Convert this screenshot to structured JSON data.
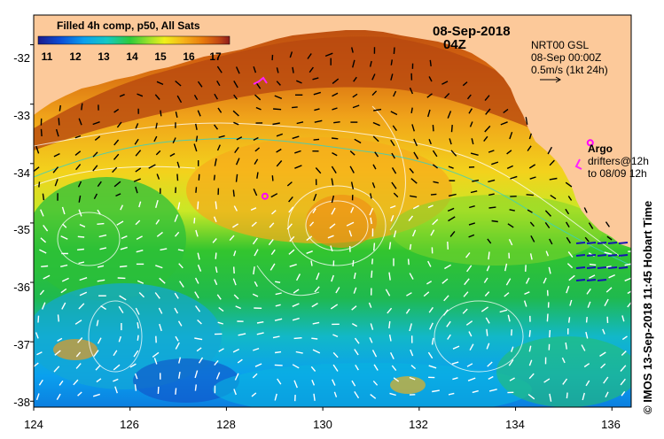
{
  "map": {
    "title": "Filled 4h comp, p50, All Sats",
    "date": "08-Sep-2018",
    "time": "04Z",
    "product": "NRT00 GSL",
    "product_time": "08-Sep 00:00Z",
    "scale_label": "0.5m/s (1kt 24h)",
    "argo_label": "Argo",
    "drifters_label_1": "drifters@12h",
    "drifters_label_2": "to 08/09 12h",
    "credit": "© IMOS 13-Sep-2018 11:45 Hobart Time",
    "colorbar": {
      "ticks": [
        "11",
        "12",
        "13",
        "14",
        "15",
        "16",
        "17"
      ],
      "range": [
        10.5,
        17.5
      ],
      "colors": [
        "#1a1a8c",
        "#0b4fd8",
        "#0aa0ee",
        "#13c9c4",
        "#2ecb3a",
        "#9ee22a",
        "#f0f01a",
        "#f6b21a",
        "#e87a0c",
        "#c44a14",
        "#8e1c1c"
      ]
    },
    "lat_axis": [
      "-32",
      "-33",
      "-34",
      "-35",
      "-36",
      "-37",
      "-38"
    ],
    "lon_axis": [
      "124",
      "126",
      "128",
      "130",
      "132",
      "134",
      "136"
    ],
    "lat_range": [
      -31.5,
      -38.1
    ],
    "lon_range": [
      124,
      136.4
    ],
    "land_color": "#fcc99a",
    "argo_floats": [
      {
        "lon": 128.8,
        "lat": -34.55
      },
      {
        "lon": 135.55,
        "lat": -33.65
      }
    ]
  }
}
